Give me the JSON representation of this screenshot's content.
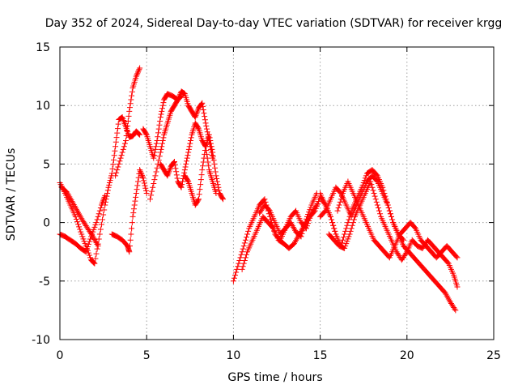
{
  "chart_data": {
    "type": "scatter",
    "title": "Day 352 of 2024, Sidereal Day-to-day VTEC variation (SDTVAR) for receiver krgg",
    "xlabel": "GPS time / hours",
    "ylabel": "SDTVAR / TECUs",
    "xlim": [
      0,
      25
    ],
    "ylim": [
      -10,
      15
    ],
    "xticks": [
      0,
      5,
      10,
      15,
      20,
      25
    ],
    "yticks": [
      -10,
      -5,
      0,
      5,
      10,
      15
    ],
    "grid": true,
    "marker": "+",
    "marker_color": "#ff0000",
    "series": [
      {
        "name": "track-1",
        "x": [
          0.0,
          0.3,
          0.6,
          0.9,
          1.2,
          1.5,
          1.8,
          2.0,
          2.3,
          2.6,
          2.8,
          3.0,
          3.2,
          3.4,
          3.6,
          3.8,
          4.0,
          4.2,
          4.4,
          4.6
        ],
        "y": [
          3.4,
          2.5,
          1.5,
          0.5,
          -0.8,
          -2.0,
          -3.2,
          -3.5,
          -1.0,
          1.5,
          3.0,
          4.2,
          6.5,
          8.8,
          9.0,
          8.2,
          7.3,
          7.4,
          7.8,
          7.5
        ]
      },
      {
        "name": "track-2",
        "x": [
          0.0,
          0.3,
          0.6,
          0.9,
          1.2,
          1.5,
          1.8,
          2.1,
          2.4,
          2.6
        ],
        "y": [
          -1.0,
          -1.2,
          -1.5,
          -1.8,
          -2.2,
          -2.5,
          -1.2,
          0.0,
          1.5,
          2.3
        ]
      },
      {
        "name": "track-3",
        "x": [
          0.1,
          0.4,
          0.7,
          1.0,
          1.3,
          1.6,
          1.9,
          2.2
        ],
        "y": [
          3.0,
          2.6,
          1.8,
          1.0,
          0.2,
          -0.5,
          -1.2,
          -2.0
        ]
      },
      {
        "name": "track-4",
        "x": [
          3.0,
          3.3,
          3.6,
          3.9,
          4.0,
          4.2,
          4.4,
          4.6,
          4.8,
          5.0
        ],
        "y": [
          -1.0,
          -1.2,
          -1.5,
          -2.0,
          -2.5,
          0.5,
          2.5,
          4.5,
          3.8,
          2.5
        ]
      },
      {
        "name": "track-5",
        "x": [
          3.2,
          3.5,
          3.8,
          4.0,
          4.2,
          4.4,
          4.6
        ],
        "y": [
          4.0,
          5.5,
          7.0,
          9.5,
          11.5,
          12.5,
          13.2
        ]
      },
      {
        "name": "track-6",
        "x": [
          4.8,
          5.0,
          5.2,
          5.4,
          5.6,
          5.8,
          6.0,
          6.2,
          6.5,
          6.8,
          7.0,
          7.2,
          7.4,
          7.6,
          7.8,
          8.0,
          8.2,
          8.4,
          8.6,
          8.8
        ],
        "y": [
          8.0,
          7.5,
          6.5,
          5.5,
          7.0,
          9.0,
          10.5,
          11.0,
          10.8,
          10.5,
          11.2,
          11.0,
          10.0,
          9.5,
          9.0,
          9.8,
          10.2,
          8.5,
          7.0,
          5.5
        ]
      },
      {
        "name": "track-7",
        "x": [
          5.2,
          5.5,
          5.8,
          6.0,
          6.2,
          6.4,
          6.6,
          6.8,
          7.0
        ],
        "y": [
          2.0,
          4.0,
          6.0,
          7.5,
          8.5,
          9.5,
          10.0,
          10.5,
          10.8
        ]
      },
      {
        "name": "track-8",
        "x": [
          5.8,
          6.0,
          6.2,
          6.4,
          6.6,
          6.8,
          7.0,
          7.2,
          7.4,
          7.6,
          7.8,
          8.0,
          8.2,
          8.4,
          8.6,
          8.8,
          9.0
        ],
        "y": [
          5.0,
          4.5,
          4.0,
          4.8,
          5.2,
          3.5,
          3.0,
          4.5,
          6.0,
          7.5,
          8.5,
          8.0,
          7.0,
          6.5,
          4.5,
          3.5,
          2.5
        ]
      },
      {
        "name": "track-9",
        "x": [
          7.2,
          7.4,
          7.6,
          7.8,
          8.0,
          8.2,
          8.4,
          8.6,
          8.8,
          9.0,
          9.2,
          9.4
        ],
        "y": [
          4.0,
          3.5,
          2.5,
          1.5,
          2.0,
          4.5,
          6.5,
          7.5,
          6.0,
          4.0,
          2.5,
          2.0
        ]
      },
      {
        "name": "track-10",
        "x": [
          10.0,
          10.3,
          10.6,
          10.9,
          11.2,
          11.5,
          11.8,
          12.1,
          12.4,
          12.7,
          13.0,
          13.3,
          13.6,
          13.9,
          14.2,
          14.5,
          14.8
        ],
        "y": [
          -5.0,
          -3.5,
          -2.0,
          -0.5,
          0.5,
          1.5,
          2.0,
          0.5,
          -1.0,
          -1.5,
          -0.5,
          0.0,
          -0.8,
          -1.2,
          0.3,
          1.5,
          2.5
        ]
      },
      {
        "name": "track-11",
        "x": [
          10.5,
          10.8,
          11.1,
          11.4,
          11.7,
          12.0,
          12.3,
          12.6,
          12.9,
          13.2,
          13.5,
          13.8,
          14.1,
          14.4,
          14.7,
          15.0,
          15.3,
          15.6,
          15.9
        ],
        "y": [
          -4.0,
          -2.5,
          -1.5,
          -0.5,
          0.5,
          0.0,
          -0.5,
          -1.5,
          -1.8,
          -2.2,
          -1.8,
          -1.0,
          -0.2,
          0.5,
          1.0,
          2.2,
          1.5,
          0.5,
          -1.0
        ]
      },
      {
        "name": "track-12",
        "x": [
          11.5,
          11.8,
          12.1,
          12.4,
          12.7,
          13.0,
          13.3,
          13.6,
          13.9,
          14.2,
          14.5,
          14.8
        ],
        "y": [
          0.8,
          1.5,
          1.0,
          0.0,
          -1.0,
          -0.5,
          0.5,
          1.0,
          0.0,
          -0.5,
          0.8,
          1.5
        ]
      },
      {
        "name": "track-13",
        "x": [
          15.0,
          15.3,
          15.6,
          15.9,
          16.2,
          16.5,
          16.8,
          17.1,
          17.4,
          17.7,
          18.0,
          18.3,
          18.6,
          18.9,
          19.2,
          19.5,
          19.8,
          20.1,
          20.4,
          20.7,
          21.0,
          21.3,
          21.6,
          21.9,
          22.2,
          22.5,
          22.8
        ],
        "y": [
          2.5,
          1.5,
          0.5,
          -1.0,
          -2.0,
          -0.5,
          1.0,
          2.0,
          3.0,
          4.2,
          4.5,
          4.0,
          3.0,
          1.5,
          0.0,
          -1.0,
          -2.0,
          -2.5,
          -3.0,
          -3.5,
          -4.0,
          -4.5,
          -5.0,
          -5.5,
          -6.0,
          -6.8,
          -7.5
        ]
      },
      {
        "name": "track-14",
        "x": [
          15.0,
          15.3,
          15.6,
          15.9,
          16.2,
          16.5,
          16.8,
          17.1,
          17.4,
          17.7,
          18.0,
          18.3,
          18.6,
          18.9,
          19.2,
          19.5,
          19.8
        ],
        "y": [
          0.5,
          1.0,
          2.0,
          3.0,
          2.5,
          1.5,
          0.5,
          1.5,
          2.5,
          3.5,
          4.0,
          3.5,
          2.5,
          1.5,
          0.0,
          -1.0,
          -1.5
        ]
      },
      {
        "name": "track-15",
        "x": [
          15.5,
          15.8,
          16.1,
          16.4,
          16.7,
          17.0,
          17.3,
          17.6,
          17.9,
          18.2,
          18.5,
          18.8,
          19.1,
          19.4,
          19.7,
          20.0,
          20.3,
          20.6,
          20.9,
          21.2,
          21.5,
          21.8,
          22.1,
          22.4,
          22.7,
          22.9
        ],
        "y": [
          -1.0,
          -1.5,
          -2.0,
          -2.2,
          -1.0,
          0.5,
          1.5,
          2.5,
          3.5,
          2.0,
          0.5,
          -0.5,
          -1.5,
          -2.5,
          -3.2,
          -2.5,
          -1.5,
          -2.0,
          -2.2,
          -1.5,
          -2.0,
          -2.5,
          -3.0,
          -3.5,
          -4.5,
          -5.5
        ]
      },
      {
        "name": "track-16",
        "x": [
          16.0,
          16.3,
          16.6,
          16.9,
          17.2,
          17.5,
          17.8,
          18.1,
          18.4,
          18.7,
          19.0,
          19.3,
          19.6,
          19.9,
          20.2,
          20.5,
          20.8,
          21.1,
          21.4,
          21.7,
          22.0,
          22.3,
          22.6,
          22.9
        ],
        "y": [
          1.0,
          2.5,
          3.5,
          2.5,
          1.5,
          0.5,
          -0.5,
          -1.5,
          -2.0,
          -2.5,
          -3.0,
          -2.0,
          -1.0,
          -0.5,
          0.0,
          -0.5,
          -1.5,
          -2.0,
          -2.5,
          -3.0,
          -2.5,
          -2.0,
          -2.5,
          -3.0
        ]
      }
    ]
  }
}
